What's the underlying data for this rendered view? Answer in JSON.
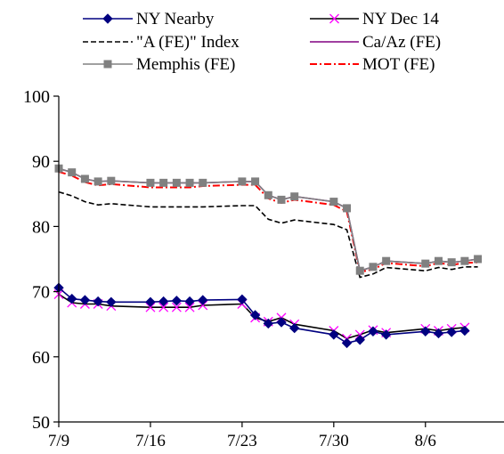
{
  "chart_data": {
    "type": "line",
    "title": "",
    "xlabel": "",
    "ylabel": "",
    "ylim": [
      50,
      100
    ],
    "yticks": [
      50,
      60,
      70,
      80,
      90,
      100
    ],
    "x_range": [
      "7/9",
      "8/12"
    ],
    "xticks": [
      "7/9",
      "7/16",
      "7/23",
      "7/30",
      "8/6"
    ],
    "grid": false,
    "legend_position": "top",
    "x": [
      "7/9",
      "7/10",
      "7/11",
      "7/12",
      "7/13",
      "7/14",
      "7/15",
      "7/16",
      "7/17",
      "7/18",
      "7/19",
      "7/20",
      "7/21",
      "7/22",
      "7/23",
      "7/24",
      "7/25",
      "7/26",
      "7/27",
      "7/28",
      "7/29",
      "7/30",
      "7/31",
      "8/1",
      "8/2",
      "8/3",
      "8/4",
      "8/5",
      "8/6",
      "8/7",
      "8/8",
      "8/9",
      "8/10",
      "8/11",
      "8/12"
    ],
    "series": [
      {
        "name": "NY Nearby",
        "color": "#000080",
        "marker": "diamond",
        "dash": "solid",
        "points": [
          [
            "7/9",
            70.6
          ],
          [
            "7/10",
            68.9
          ],
          [
            "7/11",
            68.7
          ],
          [
            "7/12",
            68.5
          ],
          [
            "7/13",
            68.4
          ],
          [
            "7/16",
            68.4
          ],
          [
            "7/17",
            68.5
          ],
          [
            "7/18",
            68.6
          ],
          [
            "7/19",
            68.5
          ],
          [
            "7/20",
            68.7
          ],
          [
            "7/23",
            68.8
          ],
          [
            "7/24",
            66.4
          ],
          [
            "7/25",
            65.1
          ],
          [
            "7/26",
            65.3
          ],
          [
            "7/27",
            64.4
          ],
          [
            "7/30",
            63.4
          ],
          [
            "7/31",
            62.1
          ],
          [
            "8/1",
            62.6
          ],
          [
            "8/2",
            63.9
          ],
          [
            "8/3",
            63.4
          ],
          [
            "8/6",
            63.9
          ],
          [
            "8/7",
            63.6
          ],
          [
            "8/8",
            63.8
          ],
          [
            "8/9",
            64.0
          ]
        ]
      },
      {
        "name": "NY Dec 14",
        "color": "#000000",
        "marker": "x",
        "marker_color": "#ff00ff",
        "dash": "solid",
        "points": [
          [
            "7/9",
            69.6
          ],
          [
            "7/10",
            68.3
          ],
          [
            "7/11",
            68.1
          ],
          [
            "7/12",
            68.1
          ],
          [
            "7/13",
            67.8
          ],
          [
            "7/16",
            67.6
          ],
          [
            "7/17",
            67.6
          ],
          [
            "7/18",
            67.6
          ],
          [
            "7/19",
            67.6
          ],
          [
            "7/20",
            67.9
          ],
          [
            "7/23",
            68.1
          ],
          [
            "7/24",
            66.0
          ],
          [
            "7/25",
            65.4
          ],
          [
            "7/26",
            66.0
          ],
          [
            "7/27",
            65.0
          ],
          [
            "7/30",
            64.0
          ],
          [
            "7/31",
            62.8
          ],
          [
            "8/1",
            63.4
          ],
          [
            "8/2",
            64.1
          ],
          [
            "8/3",
            63.7
          ],
          [
            "8/6",
            64.3
          ],
          [
            "8/7",
            64.0
          ],
          [
            "8/8",
            64.3
          ],
          [
            "8/9",
            64.5
          ]
        ]
      },
      {
        "name": "\"A (FE)\" Index",
        "color": "#000000",
        "marker": "none",
        "dash": "dashed",
        "points": [
          [
            "7/9",
            85.3
          ],
          [
            "7/10",
            84.7
          ],
          [
            "7/11",
            83.8
          ],
          [
            "7/12",
            83.3
          ],
          [
            "7/13",
            83.5
          ],
          [
            "7/16",
            83.0
          ],
          [
            "7/17",
            83.0
          ],
          [
            "7/18",
            83.0
          ],
          [
            "7/19",
            83.0
          ],
          [
            "7/20",
            83.0
          ],
          [
            "7/23",
            83.2
          ],
          [
            "7/24",
            83.2
          ],
          [
            "7/25",
            81.1
          ],
          [
            "7/26",
            80.5
          ],
          [
            "7/27",
            81.0
          ],
          [
            "7/30",
            80.3
          ],
          [
            "7/31",
            79.5
          ],
          [
            "8/1",
            72.2
          ],
          [
            "8/2",
            72.7
          ],
          [
            "8/3",
            73.7
          ],
          [
            "8/6",
            73.2
          ],
          [
            "8/7",
            73.7
          ],
          [
            "8/8",
            73.4
          ],
          [
            "8/9",
            73.8
          ],
          [
            "8/10",
            73.8
          ]
        ]
      },
      {
        "name": "Ca/Az (FE)",
        "color": "#800080",
        "marker": "none",
        "dash": "solid",
        "points": [
          [
            "7/9",
            88.9
          ],
          [
            "7/10",
            88.3
          ],
          [
            "7/11",
            87.3
          ],
          [
            "7/12",
            86.9
          ],
          [
            "7/13",
            87.0
          ],
          [
            "7/16",
            86.7
          ],
          [
            "7/17",
            86.7
          ],
          [
            "7/18",
            86.7
          ],
          [
            "7/19",
            86.7
          ],
          [
            "7/20",
            86.7
          ],
          [
            "7/23",
            86.9
          ],
          [
            "7/24",
            86.9
          ],
          [
            "7/25",
            84.8
          ],
          [
            "7/26",
            84.1
          ],
          [
            "7/27",
            84.6
          ],
          [
            "7/30",
            83.8
          ],
          [
            "7/31",
            82.8
          ],
          [
            "8/1",
            73.2
          ],
          [
            "8/2",
            73.8
          ],
          [
            "8/3",
            74.7
          ],
          [
            "8/6",
            74.3
          ],
          [
            "8/7",
            74.7
          ],
          [
            "8/8",
            74.5
          ],
          [
            "8/9",
            74.7
          ],
          [
            "8/10",
            75.0
          ]
        ]
      },
      {
        "name": "Memphis (FE)",
        "color": "#808080",
        "marker": "square",
        "dash": "solid",
        "points": [
          [
            "7/9",
            88.9
          ],
          [
            "7/10",
            88.3
          ],
          [
            "7/11",
            87.3
          ],
          [
            "7/12",
            86.9
          ],
          [
            "7/13",
            87.0
          ],
          [
            "7/16",
            86.7
          ],
          [
            "7/17",
            86.7
          ],
          [
            "7/18",
            86.7
          ],
          [
            "7/19",
            86.7
          ],
          [
            "7/20",
            86.7
          ],
          [
            "7/23",
            86.9
          ],
          [
            "7/24",
            86.9
          ],
          [
            "7/25",
            84.8
          ],
          [
            "7/26",
            84.1
          ],
          [
            "7/27",
            84.6
          ],
          [
            "7/30",
            83.8
          ],
          [
            "7/31",
            82.8
          ],
          [
            "8/1",
            73.2
          ],
          [
            "8/2",
            73.8
          ],
          [
            "8/3",
            74.7
          ],
          [
            "8/6",
            74.3
          ],
          [
            "8/7",
            74.7
          ],
          [
            "8/8",
            74.5
          ],
          [
            "8/9",
            74.7
          ],
          [
            "8/10",
            75.0
          ]
        ]
      },
      {
        "name": "MOT (FE)",
        "color": "#ff0000",
        "marker": "none",
        "dash": "dashdot",
        "points": [
          [
            "7/9",
            88.4
          ],
          [
            "7/10",
            87.8
          ],
          [
            "7/11",
            86.8
          ],
          [
            "7/12",
            86.3
          ],
          [
            "7/13",
            86.5
          ],
          [
            "7/16",
            86.0
          ],
          [
            "7/17",
            86.0
          ],
          [
            "7/18",
            86.0
          ],
          [
            "7/19",
            86.0
          ],
          [
            "7/20",
            86.2
          ],
          [
            "7/23",
            86.4
          ],
          [
            "7/24",
            86.4
          ],
          [
            "7/25",
            84.3
          ],
          [
            "7/26",
            83.6
          ],
          [
            "7/27",
            84.1
          ],
          [
            "7/30",
            83.3
          ],
          [
            "7/31",
            82.3
          ],
          [
            "8/1",
            73.0
          ],
          [
            "8/2",
            73.4
          ],
          [
            "8/3",
            74.4
          ],
          [
            "8/6",
            73.9
          ],
          [
            "8/7",
            74.4
          ],
          [
            "8/8",
            74.1
          ],
          [
            "8/9",
            74.4
          ],
          [
            "8/10",
            74.5
          ]
        ]
      }
    ]
  }
}
